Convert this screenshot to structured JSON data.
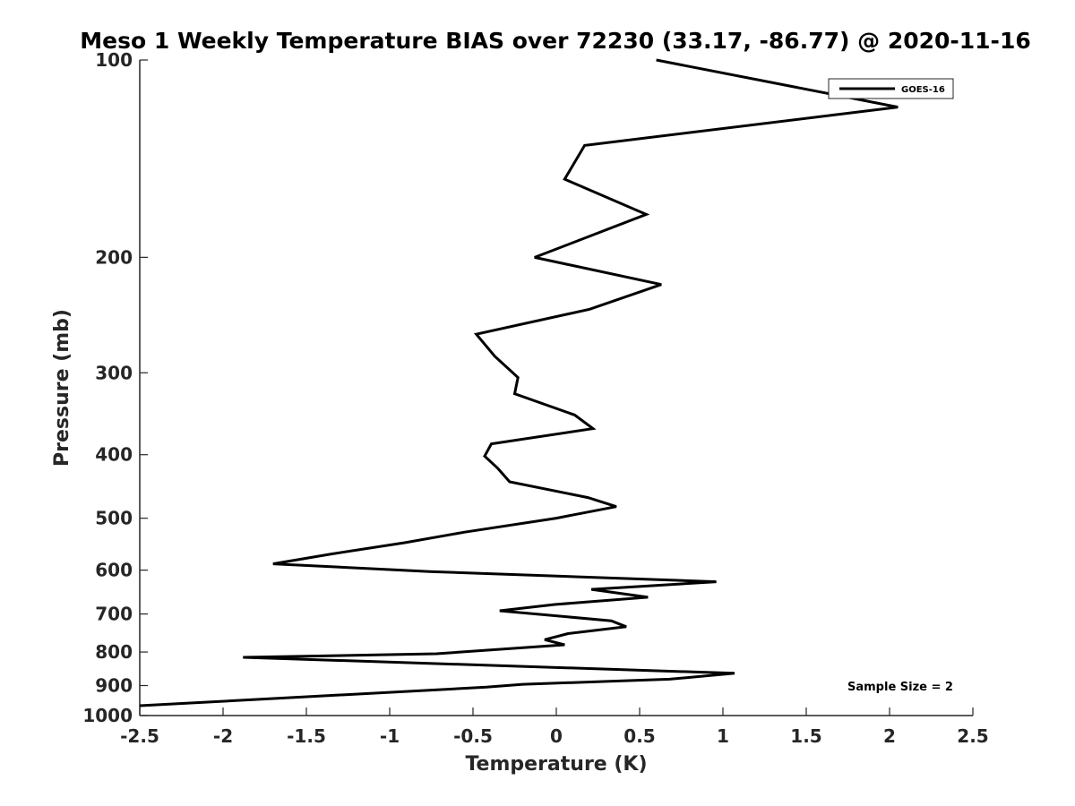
{
  "chart_data": {
    "type": "line",
    "title": "Meso 1 Weekly Temperature BIAS over 72230 (33.17, -86.77) @ 2020-11-16",
    "xlabel": "Temperature (K)",
    "ylabel": "Pressure (mb)",
    "xlim": [
      -2.5,
      2.5
    ],
    "ylim": [
      1000,
      100
    ],
    "yscale": "log",
    "yreversed": true,
    "grid": false,
    "x_ticks": [
      -2.5,
      -2,
      -1.5,
      -1,
      -0.5,
      0,
      0.5,
      1,
      1.5,
      2,
      2.5
    ],
    "x_tick_labels": [
      "-2.5",
      "-2",
      "-1.5",
      "-1",
      "-0.5",
      "0",
      "0.5",
      "1",
      "1.5",
      "2",
      "2.5"
    ],
    "y_ticks": [
      100,
      200,
      300,
      400,
      500,
      600,
      700,
      800,
      900,
      1000
    ],
    "y_tick_labels": [
      "100",
      "200",
      "300",
      "400",
      "500",
      "600",
      "700",
      "800",
      "900",
      "1000"
    ],
    "legend": {
      "location": "top-right",
      "entries": [
        "GOES-16"
      ]
    },
    "annotation": "Sample Size = 2",
    "series": [
      {
        "name": "GOES-16",
        "color": "#000000",
        "points": [
          [
            0.6,
            100
          ],
          [
            2.05,
            118
          ],
          [
            0.17,
            135
          ],
          [
            0.05,
            152
          ],
          [
            0.54,
            172
          ],
          [
            -0.13,
            200
          ],
          [
            0.63,
            220
          ],
          [
            0.2,
            240
          ],
          [
            -0.48,
            262
          ],
          [
            -0.37,
            283
          ],
          [
            -0.23,
            305
          ],
          [
            -0.25,
            323
          ],
          [
            0.11,
            348
          ],
          [
            0.22,
            365
          ],
          [
            -0.39,
            385
          ],
          [
            -0.43,
            402
          ],
          [
            -0.35,
            420
          ],
          [
            -0.28,
            440
          ],
          [
            0.19,
            465
          ],
          [
            0.36,
            480
          ],
          [
            0.0,
            500
          ],
          [
            -0.55,
            525
          ],
          [
            -0.91,
            545
          ],
          [
            -1.35,
            567
          ],
          [
            -1.7,
            587
          ],
          [
            -0.76,
            603
          ],
          [
            0.96,
            625
          ],
          [
            0.21,
            642
          ],
          [
            0.55,
            660
          ],
          [
            -0.01,
            677
          ],
          [
            -0.34,
            692
          ],
          [
            0.33,
            717
          ],
          [
            0.42,
            732
          ],
          [
            0.07,
            750
          ],
          [
            -0.07,
            766
          ],
          [
            0.05,
            780
          ],
          [
            -0.72,
            805
          ],
          [
            -1.88,
            815
          ],
          [
            1.07,
            862
          ],
          [
            0.68,
            880
          ],
          [
            -0.2,
            896
          ],
          [
            -0.42,
            905
          ],
          [
            -2.5,
            966
          ]
        ]
      }
    ]
  }
}
